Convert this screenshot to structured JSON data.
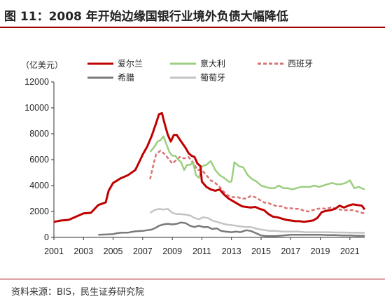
{
  "figure": {
    "title": "图 11：2008 年开始边缘国银行业境外负债大幅降低",
    "source": "资料来源：BIS，民生证券研究院",
    "unit_label": "（亿美元）"
  },
  "chart_data": {
    "type": "line",
    "ylabel": "（亿美元）",
    "xlim": [
      2001,
      2022
    ],
    "ylim": [
      0,
      12000
    ],
    "x_ticks": [
      "2001",
      "2003",
      "2005",
      "2007",
      "2009",
      "2011",
      "2013",
      "2015",
      "2017",
      "2019",
      "2021"
    ],
    "y_ticks": [
      "0",
      "2000",
      "4000",
      "6000",
      "8000",
      "10000",
      "12000"
    ],
    "legend_position": "top",
    "grid": false,
    "series": [
      {
        "name": "爱尔兰",
        "color": "#c00000",
        "dash": "solid",
        "width": 3,
        "points": [
          [
            2001.0,
            1200
          ],
          [
            2001.5,
            1300
          ],
          [
            2002.0,
            1350
          ],
          [
            2002.5,
            1600
          ],
          [
            2003.0,
            1850
          ],
          [
            2003.5,
            1900
          ],
          [
            2004.0,
            2500
          ],
          [
            2004.5,
            2700
          ],
          [
            2004.7,
            3600
          ],
          [
            2005.0,
            4200
          ],
          [
            2005.5,
            4550
          ],
          [
            2006.0,
            4800
          ],
          [
            2006.5,
            5200
          ],
          [
            2006.8,
            5900
          ],
          [
            2007.0,
            6400
          ],
          [
            2007.3,
            7000
          ],
          [
            2007.6,
            7800
          ],
          [
            2007.9,
            8800
          ],
          [
            2008.1,
            9500
          ],
          [
            2008.3,
            9600
          ],
          [
            2008.5,
            8700
          ],
          [
            2008.7,
            7900
          ],
          [
            2008.9,
            7400
          ],
          [
            2009.1,
            7900
          ],
          [
            2009.3,
            7900
          ],
          [
            2009.6,
            7400
          ],
          [
            2009.9,
            6900
          ],
          [
            2010.1,
            6500
          ],
          [
            2010.3,
            6300
          ],
          [
            2010.5,
            6200
          ],
          [
            2010.7,
            5700
          ],
          [
            2010.9,
            5500
          ],
          [
            2011.0,
            4300
          ],
          [
            2011.3,
            3900
          ],
          [
            2011.6,
            3700
          ],
          [
            2011.9,
            3600
          ],
          [
            2012.2,
            3700
          ],
          [
            2012.5,
            3300
          ],
          [
            2012.8,
            3000
          ],
          [
            2013.1,
            2800
          ],
          [
            2013.4,
            2600
          ],
          [
            2013.7,
            2400
          ],
          [
            2014.0,
            2350
          ],
          [
            2014.3,
            2300
          ],
          [
            2014.6,
            2350
          ],
          [
            2014.9,
            2200
          ],
          [
            2015.2,
            2100
          ],
          [
            2015.5,
            1800
          ],
          [
            2015.8,
            1600
          ],
          [
            2016.1,
            1550
          ],
          [
            2016.4,
            1450
          ],
          [
            2016.7,
            1350
          ],
          [
            2017.0,
            1300
          ],
          [
            2017.3,
            1250
          ],
          [
            2017.6,
            1250
          ],
          [
            2017.9,
            1200
          ],
          [
            2018.2,
            1250
          ],
          [
            2018.5,
            1300
          ],
          [
            2018.8,
            1500
          ],
          [
            2019.1,
            1950
          ],
          [
            2019.4,
            2050
          ],
          [
            2019.7,
            2100
          ],
          [
            2020.0,
            2200
          ],
          [
            2020.3,
            2450
          ],
          [
            2020.6,
            2300
          ],
          [
            2020.9,
            2450
          ],
          [
            2021.2,
            2550
          ],
          [
            2021.5,
            2500
          ],
          [
            2021.8,
            2450
          ],
          [
            2022.0,
            2150
          ]
        ]
      },
      {
        "name": "意大利",
        "color": "#9bcf7f",
        "dash": "solid",
        "width": 2.5,
        "points": [
          [
            2007.5,
            6600
          ],
          [
            2007.8,
            7000
          ],
          [
            2008.0,
            7400
          ],
          [
            2008.2,
            7500
          ],
          [
            2008.4,
            7800
          ],
          [
            2008.6,
            7200
          ],
          [
            2008.8,
            6600
          ],
          [
            2009.0,
            6300
          ],
          [
            2009.2,
            6300
          ],
          [
            2009.4,
            6000
          ],
          [
            2009.6,
            5800
          ],
          [
            2009.8,
            5200
          ],
          [
            2010.0,
            5600
          ],
          [
            2010.2,
            5600
          ],
          [
            2010.4,
            5800
          ],
          [
            2010.6,
            4800
          ],
          [
            2010.8,
            4600
          ],
          [
            2011.0,
            5500
          ],
          [
            2011.3,
            5600
          ],
          [
            2011.6,
            5900
          ],
          [
            2011.9,
            5200
          ],
          [
            2012.2,
            4800
          ],
          [
            2012.5,
            4600
          ],
          [
            2012.8,
            4300
          ],
          [
            2013.0,
            4300
          ],
          [
            2013.2,
            5800
          ],
          [
            2013.5,
            5500
          ],
          [
            2013.8,
            5400
          ],
          [
            2014.1,
            4800
          ],
          [
            2014.4,
            4500
          ],
          [
            2014.7,
            4300
          ],
          [
            2015.0,
            4000
          ],
          [
            2015.3,
            3900
          ],
          [
            2015.6,
            3800
          ],
          [
            2015.9,
            3800
          ],
          [
            2016.2,
            4000
          ],
          [
            2016.5,
            3800
          ],
          [
            2016.8,
            3800
          ],
          [
            2017.1,
            3700
          ],
          [
            2017.4,
            3800
          ],
          [
            2017.7,
            3900
          ],
          [
            2018.0,
            3900
          ],
          [
            2018.3,
            3900
          ],
          [
            2018.6,
            4000
          ],
          [
            2018.9,
            3900
          ],
          [
            2019.2,
            4000
          ],
          [
            2019.5,
            4100
          ],
          [
            2019.8,
            4200
          ],
          [
            2020.1,
            4100
          ],
          [
            2020.4,
            4100
          ],
          [
            2020.7,
            4200
          ],
          [
            2021.0,
            4400
          ],
          [
            2021.3,
            3800
          ],
          [
            2021.6,
            3900
          ],
          [
            2022.0,
            3700
          ]
        ]
      },
      {
        "name": "西班牙",
        "color": "#d97373",
        "dash": "5,3",
        "width": 2.5,
        "points": [
          [
            2007.5,
            4500
          ],
          [
            2007.7,
            5500
          ],
          [
            2007.9,
            6400
          ],
          [
            2008.2,
            6700
          ],
          [
            2008.5,
            6400
          ],
          [
            2008.8,
            6000
          ],
          [
            2009.0,
            5700
          ],
          [
            2009.2,
            5900
          ],
          [
            2009.5,
            6200
          ],
          [
            2009.8,
            6100
          ],
          [
            2010.1,
            6200
          ],
          [
            2010.4,
            5800
          ],
          [
            2010.7,
            5200
          ],
          [
            2011.0,
            5200
          ],
          [
            2011.3,
            4800
          ],
          [
            2011.6,
            4400
          ],
          [
            2011.9,
            4200
          ],
          [
            2012.2,
            3900
          ],
          [
            2012.5,
            3500
          ],
          [
            2012.8,
            3200
          ],
          [
            2013.1,
            3100
          ],
          [
            2013.4,
            3100
          ],
          [
            2013.7,
            3000
          ],
          [
            2014.0,
            3000
          ],
          [
            2014.3,
            3200
          ],
          [
            2014.6,
            3100
          ],
          [
            2014.9,
            2900
          ],
          [
            2015.2,
            2700
          ],
          [
            2015.5,
            2650
          ],
          [
            2015.8,
            2500
          ],
          [
            2016.1,
            2400
          ],
          [
            2016.4,
            2400
          ],
          [
            2016.7,
            2250
          ],
          [
            2017.0,
            2250
          ],
          [
            2017.3,
            2200
          ],
          [
            2017.6,
            2200
          ],
          [
            2017.9,
            2050
          ],
          [
            2018.2,
            2000
          ],
          [
            2018.5,
            2100
          ],
          [
            2018.8,
            2200
          ],
          [
            2019.1,
            2250
          ],
          [
            2019.4,
            2200
          ],
          [
            2019.7,
            2300
          ],
          [
            2020.0,
            2250
          ],
          [
            2020.3,
            2150
          ],
          [
            2020.6,
            2100
          ],
          [
            2020.9,
            2100
          ],
          [
            2021.2,
            2100
          ],
          [
            2021.5,
            2000
          ],
          [
            2021.8,
            1900
          ],
          [
            2022.0,
            1850
          ]
        ]
      },
      {
        "name": "希腊",
        "color": "#7a7a7a",
        "dash": "solid",
        "width": 2.5,
        "points": [
          [
            2004.0,
            200
          ],
          [
            2004.5,
            220
          ],
          [
            2005.0,
            250
          ],
          [
            2005.3,
            330
          ],
          [
            2005.6,
            370
          ],
          [
            2006.0,
            360
          ],
          [
            2006.3,
            430
          ],
          [
            2006.6,
            480
          ],
          [
            2007.0,
            500
          ],
          [
            2007.3,
            550
          ],
          [
            2007.6,
            600
          ],
          [
            2007.9,
            750
          ],
          [
            2008.1,
            900
          ],
          [
            2008.4,
            1000
          ],
          [
            2008.7,
            1050
          ],
          [
            2009.0,
            1000
          ],
          [
            2009.3,
            1050
          ],
          [
            2009.6,
            1150
          ],
          [
            2009.9,
            1100
          ],
          [
            2010.2,
            900
          ],
          [
            2010.5,
            800
          ],
          [
            2010.8,
            900
          ],
          [
            2011.1,
            800
          ],
          [
            2011.4,
            800
          ],
          [
            2011.7,
            650
          ],
          [
            2012.0,
            700
          ],
          [
            2012.3,
            500
          ],
          [
            2012.6,
            450
          ],
          [
            2013.0,
            400
          ],
          [
            2013.3,
            450
          ],
          [
            2013.6,
            400
          ],
          [
            2014.0,
            550
          ],
          [
            2014.3,
            500
          ],
          [
            2014.6,
            350
          ],
          [
            2015.0,
            150
          ],
          [
            2015.3,
            100
          ],
          [
            2015.6,
            100
          ],
          [
            2016.0,
            100
          ],
          [
            2016.5,
            150
          ],
          [
            2017.0,
            200
          ],
          [
            2017.5,
            200
          ],
          [
            2018.0,
            200
          ],
          [
            2018.5,
            200
          ],
          [
            2019.0,
            200
          ],
          [
            2019.5,
            180
          ],
          [
            2020.0,
            180
          ],
          [
            2020.5,
            150
          ],
          [
            2021.0,
            150
          ],
          [
            2021.5,
            120
          ],
          [
            2022.0,
            120
          ]
        ]
      },
      {
        "name": "葡萄牙",
        "color": "#c4c4c4",
        "dash": "solid",
        "width": 2.5,
        "points": [
          [
            2007.5,
            1900
          ],
          [
            2007.8,
            2100
          ],
          [
            2008.1,
            2200
          ],
          [
            2008.4,
            2150
          ],
          [
            2008.7,
            2200
          ],
          [
            2009.0,
            1900
          ],
          [
            2009.3,
            1800
          ],
          [
            2009.6,
            1800
          ],
          [
            2009.9,
            1750
          ],
          [
            2010.2,
            1700
          ],
          [
            2010.5,
            1500
          ],
          [
            2010.8,
            1400
          ],
          [
            2011.1,
            1550
          ],
          [
            2011.4,
            1500
          ],
          [
            2011.7,
            1300
          ],
          [
            2012.0,
            1200
          ],
          [
            2012.3,
            1100
          ],
          [
            2012.6,
            1000
          ],
          [
            2013.0,
            950
          ],
          [
            2013.3,
            900
          ],
          [
            2013.6,
            850
          ],
          [
            2014.0,
            800
          ],
          [
            2014.3,
            800
          ],
          [
            2014.6,
            700
          ],
          [
            2015.0,
            600
          ],
          [
            2015.3,
            550
          ],
          [
            2015.6,
            500
          ],
          [
            2016.0,
            500
          ],
          [
            2016.5,
            450
          ],
          [
            2017.0,
            450
          ],
          [
            2017.5,
            450
          ],
          [
            2018.0,
            400
          ],
          [
            2018.5,
            400
          ],
          [
            2019.0,
            400
          ],
          [
            2019.5,
            400
          ],
          [
            2020.0,
            380
          ],
          [
            2020.5,
            380
          ],
          [
            2021.0,
            370
          ],
          [
            2021.5,
            360
          ],
          [
            2022.0,
            350
          ]
        ]
      }
    ],
    "legend": [
      {
        "name": "爱尔兰",
        "color": "#c00000",
        "dash": "solid"
      },
      {
        "name": "意大利",
        "color": "#9bcf7f",
        "dash": "solid"
      },
      {
        "name": "西班牙",
        "color": "#d97373",
        "dash": "5,3"
      },
      {
        "name": "希腊",
        "color": "#7a7a7a",
        "dash": "solid"
      },
      {
        "name": "葡萄牙",
        "color": "#c4c4c4",
        "dash": "solid"
      }
    ]
  }
}
